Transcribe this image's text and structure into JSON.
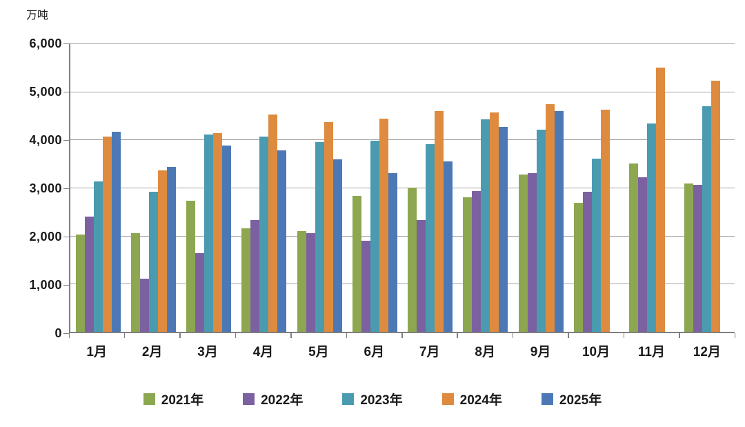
{
  "chart_data": {
    "type": "bar",
    "title": "",
    "unit": "万吨",
    "xlabel": "",
    "ylabel": "万吨",
    "categories": [
      "1月",
      "2月",
      "3月",
      "4月",
      "5月",
      "6月",
      "7月",
      "8月",
      "9月",
      "10月",
      "11月",
      "12月"
    ],
    "series": [
      {
        "name": "2021年",
        "color": "#8DA750",
        "values": [
          2020,
          2060,
          2730,
          2160,
          2090,
          2830,
          3000,
          2800,
          3280,
          2680,
          3500,
          3080
        ]
      },
      {
        "name": "2022年",
        "color": "#7C61A1",
        "values": [
          2400,
          1110,
          1630,
          2330,
          2050,
          1890,
          2330,
          2930,
          3300,
          2910,
          3210,
          3060
        ]
      },
      {
        "name": "2023年",
        "color": "#4A9BB0",
        "values": [
          3130,
          2910,
          4100,
          4060,
          3950,
          3980,
          3900,
          4420,
          4200,
          3600,
          4340,
          4700
        ]
      },
      {
        "name": "2024年",
        "color": "#DE8B3F",
        "values": [
          4060,
          3360,
          4130,
          4520,
          4360,
          4440,
          4600,
          4570,
          4730,
          4620,
          5500,
          5220
        ]
      },
      {
        "name": "2025年",
        "color": "#4C79B5",
        "values": [
          4160,
          3430,
          3870,
          3780,
          3590,
          3300,
          3550,
          4260,
          4590,
          null,
          null,
          null
        ]
      }
    ],
    "ylim": [
      0,
      6000
    ],
    "yticks": [
      0,
      1000,
      2000,
      3000,
      4000,
      5000,
      6000
    ],
    "ytick_labels": [
      "0",
      "1,000",
      "2,000",
      "3,000",
      "4,000",
      "5,000",
      "6,000"
    ],
    "grid": true,
    "legend_position": "bottom"
  }
}
